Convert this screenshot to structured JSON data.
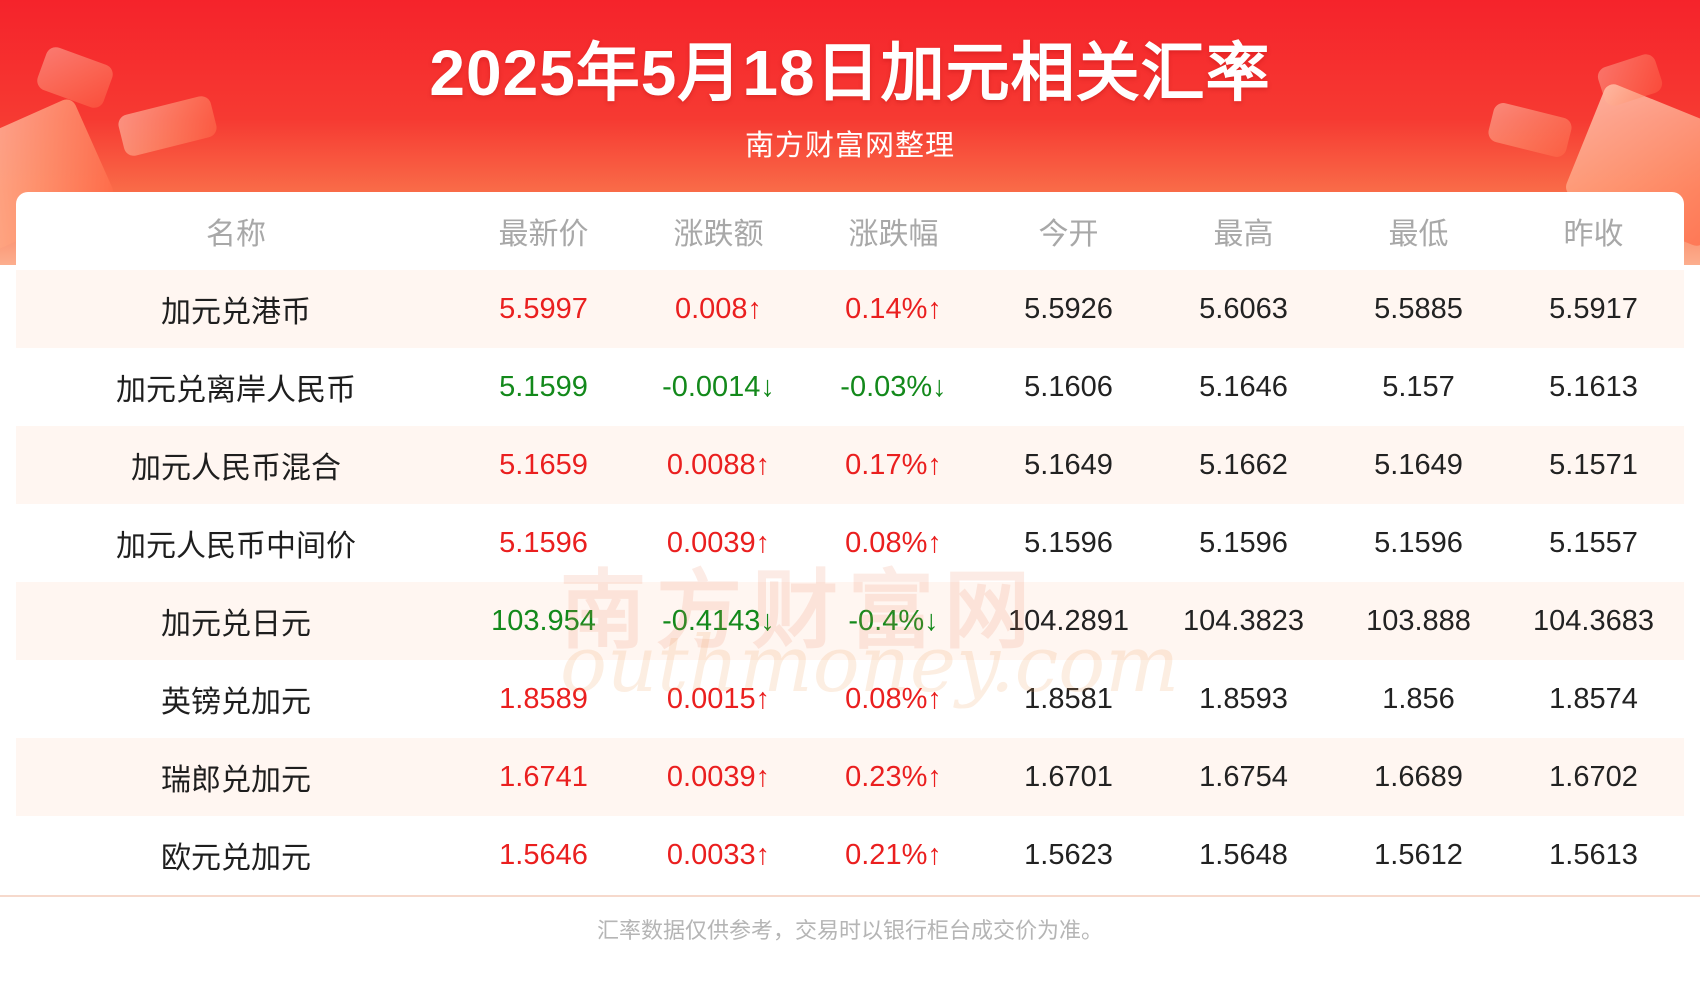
{
  "header": {
    "title": "2025年5月18日加元相关汇率",
    "subtitle": "南方财富网整理"
  },
  "table": {
    "columns": [
      "名称",
      "最新价",
      "涨跌额",
      "涨跌幅",
      "今开",
      "最高",
      "最低",
      "昨收"
    ],
    "rows": [
      [
        "加元兑港币",
        "5.5997",
        "0.008↑",
        "0.14%↑",
        "5.5926",
        "5.6063",
        "5.5885",
        "5.5917"
      ],
      [
        "加元兑离岸人民币",
        "5.1599",
        "-0.0014↓",
        "-0.03%↓",
        "5.1606",
        "5.1646",
        "5.157",
        "5.1613"
      ],
      [
        "加元人民币混合",
        "5.1659",
        "0.0088↑",
        "0.17%↑",
        "5.1649",
        "5.1662",
        "5.1649",
        "5.1571"
      ],
      [
        "加元人民币中间价",
        "5.1596",
        "0.0039↑",
        "0.08%↑",
        "5.1596",
        "5.1596",
        "5.1596",
        "5.1557"
      ],
      [
        "加元兑日元",
        "103.954",
        "-0.4143↓",
        "-0.4%↓",
        "104.2891",
        "104.3823",
        "103.888",
        "104.3683"
      ],
      [
        "英镑兑加元",
        "1.8589",
        "0.0015↑",
        "0.08%↑",
        "1.8581",
        "1.8593",
        "1.856",
        "1.8574"
      ],
      [
        "瑞郎兑加元",
        "1.6741",
        "0.0039↑",
        "0.23%↑",
        "1.6701",
        "1.6754",
        "1.6689",
        "1.6702"
      ],
      [
        "欧元兑加元",
        "1.5646",
        "0.0033↑",
        "0.21%↑",
        "1.5623",
        "1.5648",
        "1.5612",
        "1.5613"
      ]
    ],
    "trend": [
      "up",
      "down",
      "up",
      "up",
      "down",
      "up",
      "up",
      "up"
    ]
  },
  "watermark": {
    "cn": "南方财富网",
    "en": "outhmoney.com"
  },
  "footer": {
    "note": "汇率数据仅供参考，交易时以银行柜台成交价为准。"
  },
  "colors": {
    "header_red": "#f5232b",
    "up": "#ea1f1f",
    "down": "#13891b",
    "row_shade": "#fff6f1"
  }
}
